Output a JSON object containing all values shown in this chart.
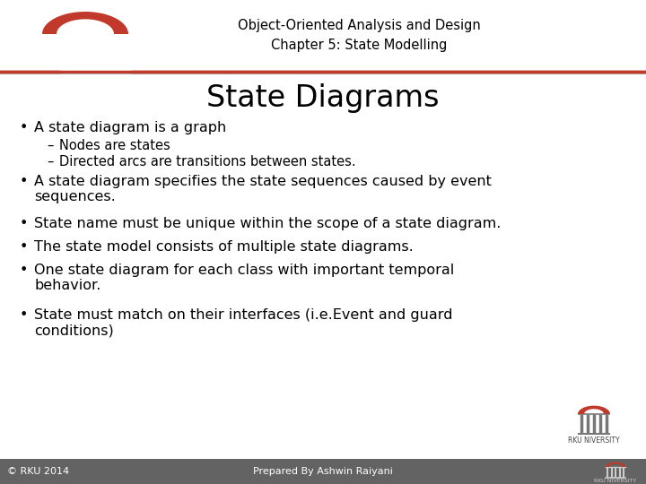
{
  "title_line1": "Object-Oriented Analysis and Design",
  "title_line2": "Chapter 5: State Modelling",
  "slide_title": "State Diagrams",
  "bg_color": "#ffffff",
  "footer_bg": "#636363",
  "accent_color": "#c0392b",
  "title_font_size": 10.5,
  "slide_title_font_size": 24,
  "bullet_font_size": 11.5,
  "sub_bullet_font_size": 10.5,
  "footer_text_left": "© RKU 2014",
  "footer_text_center": "Prepared By Ashwin Raiyani",
  "footer_text_right": "RKU NIVERSITY",
  "bullets": [
    "A state diagram is a graph",
    "A state diagram specifies the state sequences caused by event\nsequences.",
    "State name must be unique within the scope of a state diagram.",
    "The state model consists of multiple state diagrams.",
    "One state diagram for each class with important temporal\nbehavior.",
    "State must match on their interfaces (i.e.Event and guard\nconditions)"
  ],
  "sub_bullets": [
    "Nodes are states",
    "Directed arcs are transitions between states."
  ]
}
